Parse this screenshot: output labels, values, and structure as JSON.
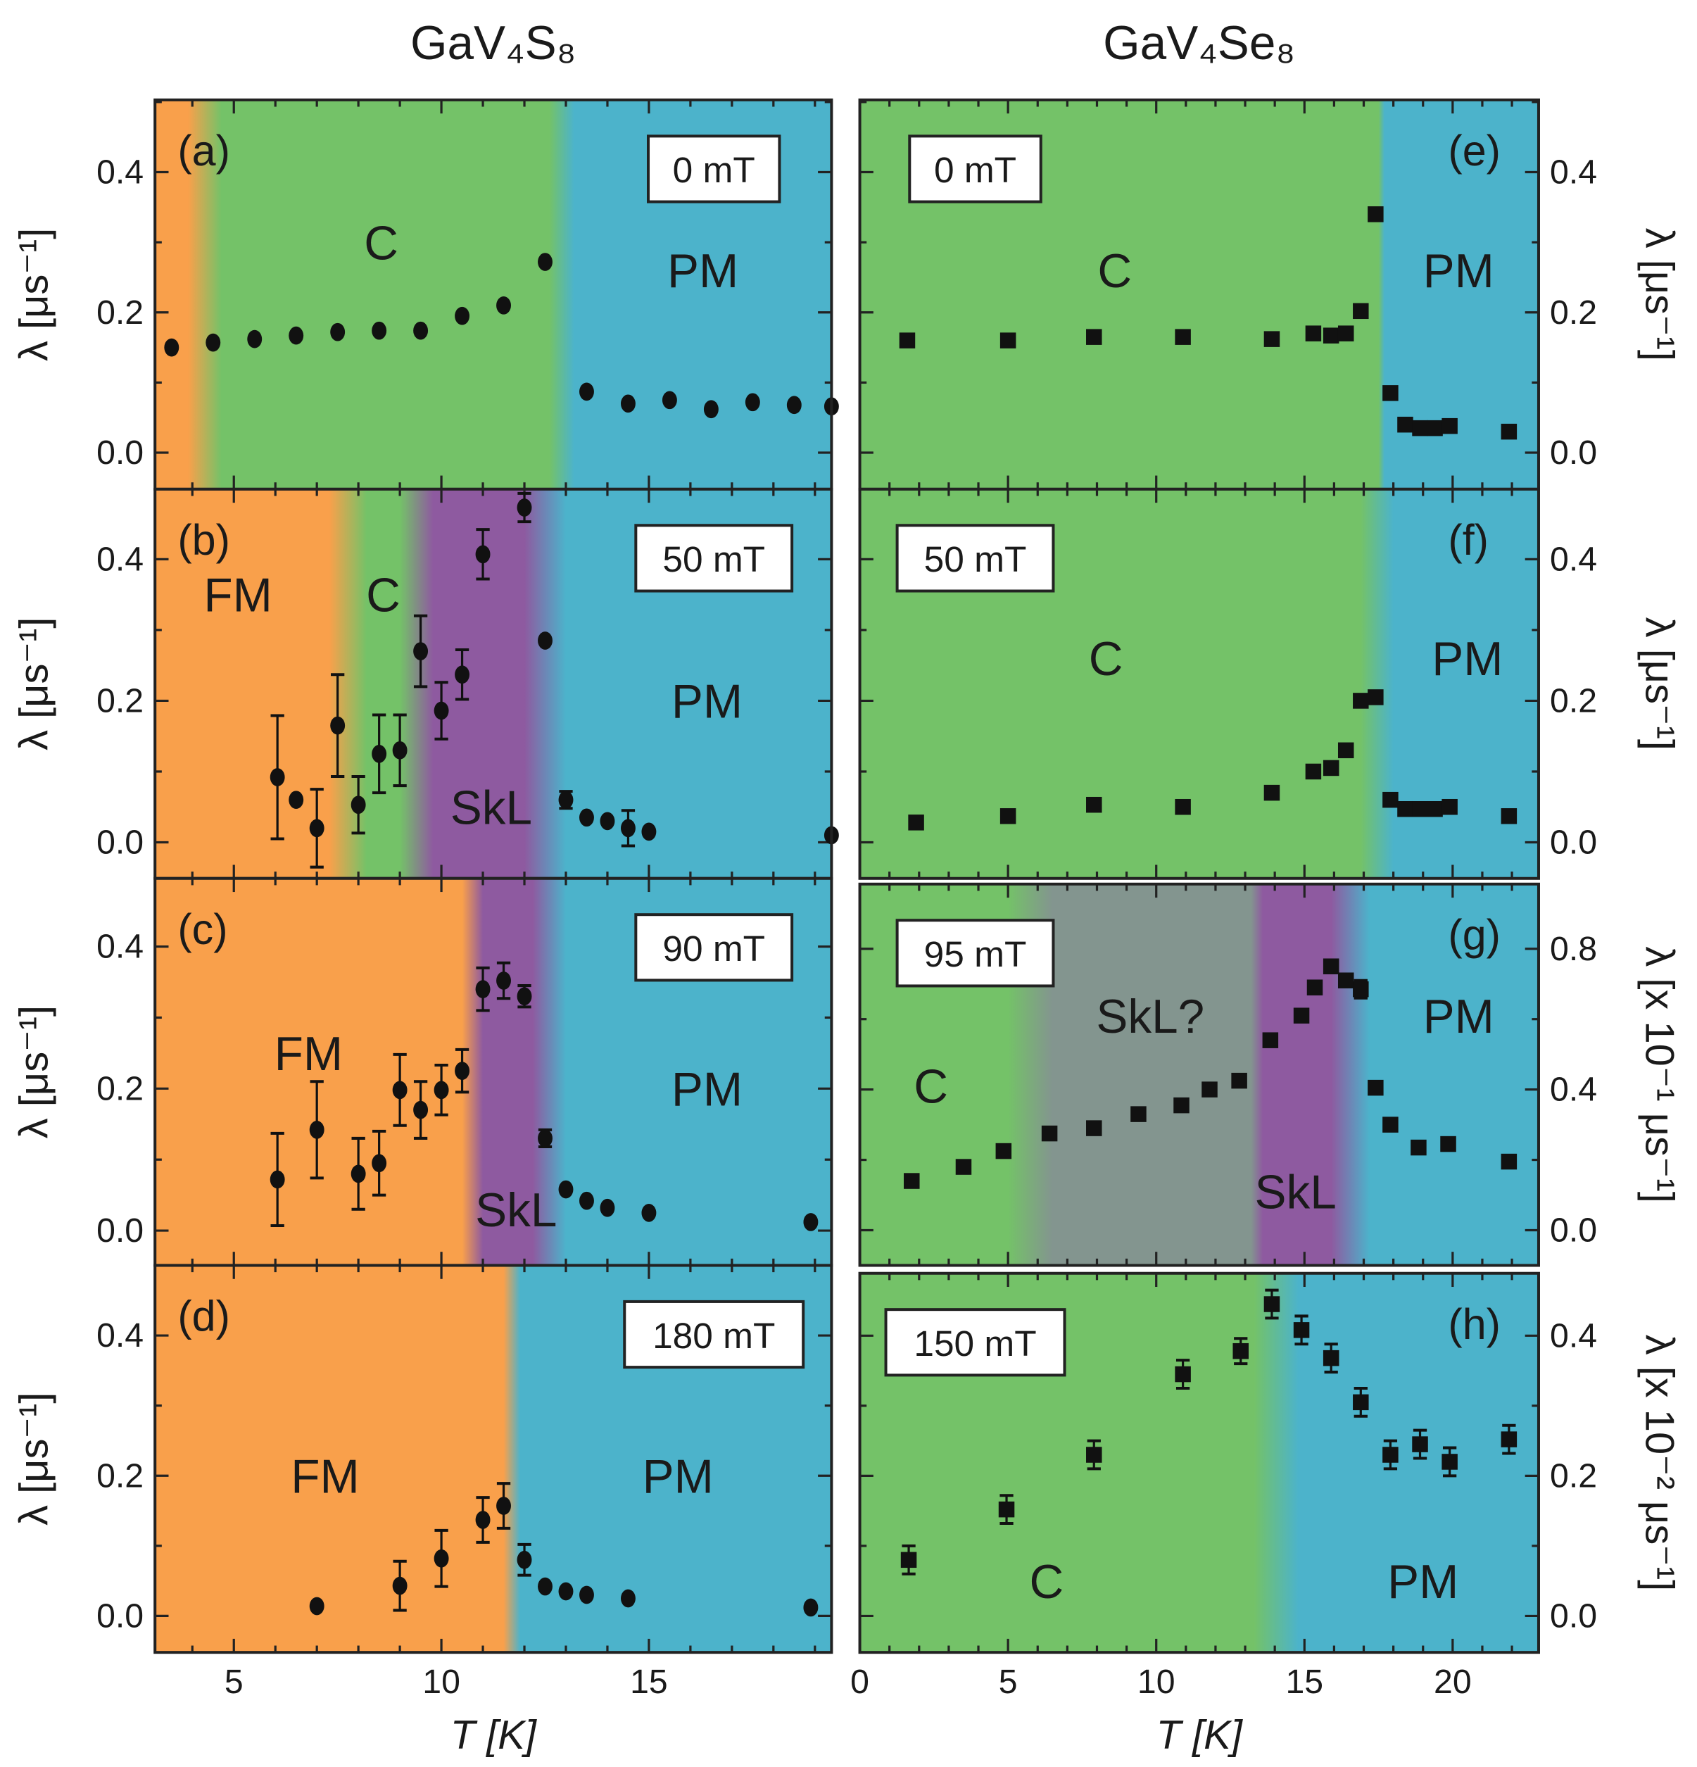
{
  "titles": {
    "left": "GaV₄S₈",
    "right": "GaV₄Se₈"
  },
  "xlabel": "T [K]",
  "colors": {
    "FM": "#F9A04B",
    "C": "#74C268",
    "PM": "#4CB3CB",
    "SkL": "#8E5AA0",
    "SkL?": "#83958F",
    "marker": "#111111"
  },
  "chart_data": [
    {
      "type": "scatter",
      "panel": "(a)",
      "field": "0 mT",
      "compound": "GaV₄S₈",
      "marker": "circle",
      "ylabel": "λ [μs⁻¹]",
      "xlim": [
        3.1,
        19.4
      ],
      "ylim": [
        -0.052,
        0.503
      ],
      "xticks": [
        "5",
        "10",
        "15"
      ],
      "yticks": [
        "0.0",
        "0.2",
        "0.4"
      ],
      "x": [
        3.5,
        4.5,
        5.5,
        6.5,
        7.5,
        8.5,
        9.5,
        10.5,
        11.5,
        12.5,
        13.5,
        14.5,
        15.5,
        16.5,
        17.5,
        18.5,
        19.4
      ],
      "y": [
        0.15,
        0.157,
        0.162,
        0.167,
        0.172,
        0.174,
        0.174,
        0.195,
        0.21,
        0.272,
        0.087,
        0.07,
        0.075,
        0.062,
        0.072,
        0.068,
        0.066
      ],
      "yerr": [
        0.01,
        0.01,
        0.01,
        0.01,
        0.01,
        0.008,
        0.008,
        0.01,
        0.01,
        0.008,
        0.008,
        0.01,
        0.008,
        0.01,
        0.008,
        0.008,
        0.008
      ],
      "phases": [
        "C",
        "PM"
      ],
      "background": [
        [
          3.1,
          "#F9A04B"
        ],
        [
          3.9,
          "#F9A04B"
        ],
        [
          4.7,
          "#74C268"
        ],
        [
          12.6,
          "#74C268"
        ],
        [
          13.2,
          "#4CB3CB"
        ],
        [
          19.4,
          "#4CB3CB"
        ]
      ]
    },
    {
      "type": "scatter",
      "panel": "(b)",
      "field": "50 mT",
      "compound": "GaV₄S₈",
      "marker": "circle",
      "ylabel": "λ [μs⁻¹]",
      "xlim": [
        3.1,
        19.4
      ],
      "ylim": [
        -0.051,
        0.499
      ],
      "xticks": [
        "5",
        "10",
        "15"
      ],
      "yticks": [
        "0.0",
        "0.2",
        "0.4"
      ],
      "x": [
        6.05,
        6.5,
        7.0,
        7.5,
        8.0,
        8.5,
        9.0,
        9.5,
        10.0,
        10.5,
        11.0,
        12.0,
        12.5,
        13.0,
        13.5,
        14.0,
        14.5,
        15.0,
        19.4
      ],
      "y": [
        0.092,
        0.06,
        0.02,
        0.165,
        0.053,
        0.125,
        0.13,
        0.27,
        0.186,
        0.237,
        0.407,
        0.473,
        0.285,
        0.06,
        0.035,
        0.03,
        0.02,
        0.015,
        0.01
      ],
      "yerr": [
        0.087,
        0.01,
        0.055,
        0.072,
        0.04,
        0.055,
        0.05,
        0.05,
        0.04,
        0.035,
        0.035,
        0.02,
        0.01,
        0.012,
        0.006,
        0.006,
        0.025,
        0.006,
        0.006
      ],
      "phases": [
        "FM",
        "C",
        "SkL",
        "PM"
      ],
      "background": [
        [
          3.1,
          "#F9A04B"
        ],
        [
          7.3,
          "#F9A04B"
        ],
        [
          8.2,
          "#74C268"
        ],
        [
          9.0,
          "#74C268"
        ],
        [
          9.8,
          "#8E5AA0"
        ],
        [
          12.0,
          "#8E5AA0"
        ],
        [
          13.0,
          "#4CB3CB"
        ],
        [
          19.4,
          "#4CB3CB"
        ]
      ]
    },
    {
      "type": "scatter",
      "panel": "(c)",
      "field": "90 mT",
      "compound": "GaV₄S₈",
      "marker": "circle",
      "ylabel": "λ [μs⁻¹]",
      "xlim": [
        3.1,
        19.4
      ],
      "ylim": [
        -0.049,
        0.496
      ],
      "xticks": [
        "5",
        "10",
        "15"
      ],
      "yticks": [
        "0.0",
        "0.2",
        "0.4"
      ],
      "x": [
        6.05,
        7.0,
        8.0,
        8.5,
        9.0,
        9.5,
        10.0,
        10.5,
        11.0,
        11.5,
        12.0,
        12.5,
        13.0,
        13.5,
        14.0,
        15.0,
        18.9
      ],
      "y": [
        0.072,
        0.142,
        0.08,
        0.095,
        0.198,
        0.17,
        0.198,
        0.225,
        0.34,
        0.352,
        0.33,
        0.13,
        0.058,
        0.042,
        0.032,
        0.025,
        0.012
      ],
      "yerr": [
        0.065,
        0.068,
        0.05,
        0.045,
        0.05,
        0.04,
        0.035,
        0.03,
        0.03,
        0.025,
        0.015,
        0.012,
        0.006,
        0.006,
        0.006,
        0.006,
        0.006
      ],
      "phases": [
        "FM",
        "SkL",
        "PM"
      ],
      "background": [
        [
          3.1,
          "#F9A04B"
        ],
        [
          10.5,
          "#F9A04B"
        ],
        [
          11.0,
          "#8E5AA0"
        ],
        [
          12.2,
          "#8E5AA0"
        ],
        [
          13.0,
          "#4CB3CB"
        ],
        [
          19.4,
          "#4CB3CB"
        ]
      ]
    },
    {
      "type": "scatter",
      "panel": "(d)",
      "field": "180 mT",
      "compound": "GaV₄S₈",
      "marker": "circle",
      "ylabel": "λ [μs⁻¹]",
      "xlim": [
        3.1,
        19.4
      ],
      "ylim": [
        -0.052,
        0.5
      ],
      "xticks": [
        "5",
        "10",
        "15"
      ],
      "yticks": [
        "0.0",
        "0.2",
        "0.4"
      ],
      "x": [
        7.0,
        9.0,
        10.0,
        11.0,
        11.5,
        12.0,
        12.5,
        13.0,
        13.5,
        14.5,
        18.9
      ],
      "y": [
        0.014,
        0.043,
        0.082,
        0.137,
        0.157,
        0.08,
        0.042,
        0.035,
        0.03,
        0.025,
        0.012
      ],
      "yerr": [
        0.006,
        0.035,
        0.04,
        0.032,
        0.032,
        0.022,
        0.006,
        0.006,
        0.006,
        0.006,
        0.006
      ],
      "phases": [
        "FM",
        "PM"
      ],
      "background": [
        [
          3.1,
          "#F9A04B"
        ],
        [
          11.5,
          "#F9A04B"
        ],
        [
          11.9,
          "#4CB3CB"
        ],
        [
          19.4,
          "#4CB3CB"
        ]
      ]
    },
    {
      "type": "scatter",
      "panel": "(e)",
      "field": "0 mT",
      "compound": "GaV₄Se₈",
      "marker": "square",
      "ylabel": "λ [μs⁻¹]",
      "xlim": [
        0,
        22.9
      ],
      "ylim": [
        -0.052,
        0.503
      ],
      "xticks": [
        "0",
        "5",
        "10",
        "15",
        "20"
      ],
      "yticks": [
        "0.0",
        "0.2",
        "0.4"
      ],
      "x": [
        1.6,
        5.0,
        7.9,
        10.9,
        13.9,
        15.3,
        15.9,
        16.4,
        16.9,
        17.4,
        17.9,
        18.4,
        18.9,
        19.4,
        19.9,
        21.9
      ],
      "y": [
        0.16,
        0.16,
        0.165,
        0.165,
        0.162,
        0.17,
        0.167,
        0.17,
        0.202,
        0.34,
        0.085,
        0.04,
        0.035,
        0.035,
        0.038,
        0.03
      ],
      "yerr": [
        0.006,
        0.006,
        0.006,
        0.006,
        0.006,
        0.006,
        0.006,
        0.006,
        0.006,
        0.008,
        0.006,
        0.006,
        0.006,
        0.006,
        0.006,
        0.006
      ],
      "phases": [
        "C",
        "PM"
      ],
      "background": [
        [
          0,
          "#74C268"
        ],
        [
          17.5,
          "#74C268"
        ],
        [
          17.7,
          "#4CB3CB"
        ],
        [
          22.9,
          "#4CB3CB"
        ]
      ]
    },
    {
      "type": "scatter",
      "panel": "(f)",
      "field": "50 mT",
      "compound": "GaV₄Se₈",
      "marker": "square",
      "ylabel": "λ [μs⁻¹]",
      "xlim": [
        0,
        22.9
      ],
      "ylim": [
        -0.051,
        0.499
      ],
      "xticks": [
        "0",
        "5",
        "10",
        "15",
        "20"
      ],
      "yticks": [
        "0.0",
        "0.2",
        "0.4"
      ],
      "x": [
        1.9,
        5.0,
        7.9,
        10.9,
        13.9,
        15.3,
        15.9,
        16.4,
        16.9,
        17.4,
        17.9,
        18.4,
        18.9,
        19.4,
        19.9,
        21.9
      ],
      "y": [
        0.028,
        0.037,
        0.053,
        0.05,
        0.07,
        0.1,
        0.105,
        0.13,
        0.2,
        0.205,
        0.06,
        0.047,
        0.047,
        0.047,
        0.05,
        0.037
      ],
      "yerr": [
        0.006,
        0.006,
        0.006,
        0.006,
        0.006,
        0.006,
        0.006,
        0.006,
        0.006,
        0.006,
        0.006,
        0.006,
        0.006,
        0.006,
        0.006,
        0.006
      ],
      "phases": [
        "C",
        "PM"
      ],
      "background": [
        [
          0,
          "#74C268"
        ],
        [
          16.9,
          "#74C268"
        ],
        [
          18.0,
          "#4CB3CB"
        ],
        [
          22.9,
          "#4CB3CB"
        ]
      ]
    },
    {
      "type": "scatter",
      "panel": "(g)",
      "field": "95 mT",
      "compound": "GaV₄Se₈",
      "marker": "square",
      "ylabel": "λ [x 10⁻¹ μs⁻¹]",
      "xlim": [
        0,
        22.9
      ],
      "ylim": [
        -0.1,
        0.984
      ],
      "xticks": [
        "0",
        "5",
        "10",
        "15",
        "20"
      ],
      "yticks": [
        "0.0",
        "0.4",
        "0.8"
      ],
      "x": [
        1.75,
        3.5,
        4.85,
        6.4,
        7.9,
        9.4,
        10.85,
        11.8,
        12.8,
        13.85,
        14.9,
        15.35,
        15.9,
        16.4,
        16.9,
        17.4,
        17.9,
        18.85,
        19.85,
        21.9
      ],
      "y": [
        0.14,
        0.18,
        0.225,
        0.275,
        0.29,
        0.33,
        0.355,
        0.4,
        0.425,
        0.54,
        0.61,
        0.69,
        0.75,
        0.71,
        0.685,
        0.405,
        0.3,
        0.235,
        0.245,
        0.195
      ],
      "yerr": [
        0.012,
        0.02,
        0.012,
        0.012,
        0.012,
        0.012,
        0.012,
        0.015,
        0.02,
        0.015,
        0.02,
        0.02,
        0.02,
        0.02,
        0.025,
        0.015,
        0.012,
        0.012,
        0.012,
        0.012
      ],
      "phases": [
        "C",
        "SkL?",
        "SkL",
        "PM"
      ],
      "background": [
        [
          0,
          "#74C268"
        ],
        [
          5.0,
          "#74C268"
        ],
        [
          6.5,
          "#83958F"
        ],
        [
          13.2,
          "#83958F"
        ],
        [
          13.6,
          "#8E5AA0"
        ],
        [
          15.9,
          "#8E5AA0"
        ],
        [
          17.2,
          "#4CB3CB"
        ],
        [
          22.9,
          "#4CB3CB"
        ]
      ]
    },
    {
      "type": "scatter",
      "panel": "(h)",
      "field": "150 mT",
      "compound": "GaV₄Se₈",
      "marker": "square",
      "ylabel": "λ [x 10⁻² μs⁻¹]",
      "xlim": [
        0,
        22.9
      ],
      "ylim": [
        -0.052,
        0.489
      ],
      "xticks": [
        "0",
        "5",
        "10",
        "15",
        "20"
      ],
      "yticks": [
        "0.0",
        "0.2",
        "0.4"
      ],
      "x": [
        1.65,
        4.95,
        7.9,
        10.9,
        12.85,
        13.9,
        14.9,
        15.9,
        16.9,
        17.9,
        18.9,
        19.9,
        21.9
      ],
      "y": [
        0.08,
        0.152,
        0.23,
        0.345,
        0.378,
        0.445,
        0.408,
        0.368,
        0.305,
        0.23,
        0.245,
        0.22,
        0.252
      ],
      "yerr": [
        0.02,
        0.02,
        0.02,
        0.02,
        0.018,
        0.02,
        0.02,
        0.02,
        0.02,
        0.02,
        0.02,
        0.02,
        0.02
      ],
      "phases": [
        "C",
        "PM"
      ],
      "background": [
        [
          0,
          "#74C268"
        ],
        [
          13.3,
          "#74C268"
        ],
        [
          14.8,
          "#4CB3CB"
        ],
        [
          22.9,
          "#4CB3CB"
        ]
      ]
    }
  ]
}
